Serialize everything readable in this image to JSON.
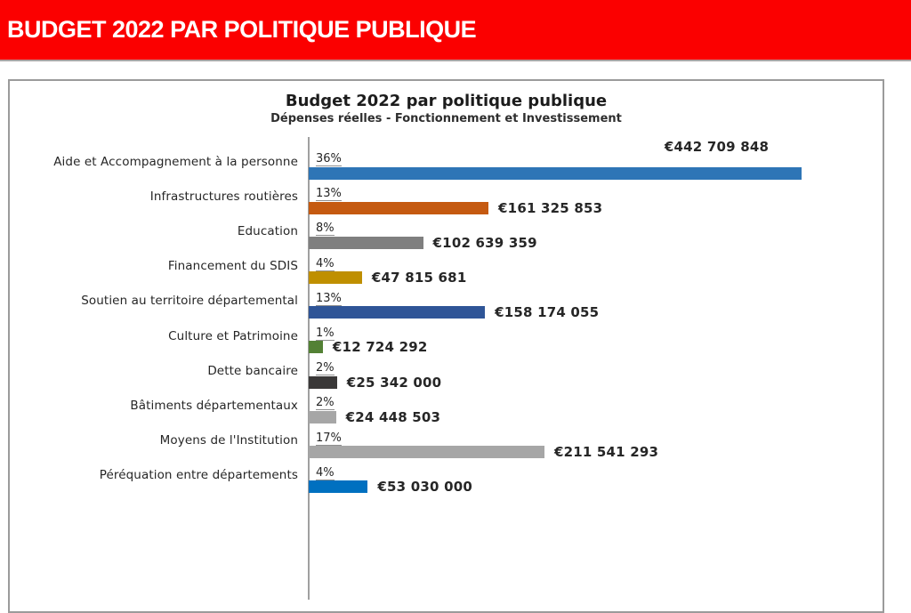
{
  "banner": {
    "title": "BUDGET 2022 PAR POLITIQUE PUBLIQUE",
    "background": "#FB0000",
    "text_color": "#FFFFFF"
  },
  "chart": {
    "title": "Budget 2022 par politique publique",
    "subtitle": "Dépenses réelles - Fonctionnement et Investissement"
  },
  "chart_data": {
    "type": "bar",
    "orientation": "horizontal",
    "title": "Budget 2022 par politique publique",
    "subtitle": "Dépenses réelles - Fonctionnement et Investissement",
    "unit": "EUR",
    "scale_max": 515000000,
    "grid": false,
    "legend": false,
    "categories": [
      "Aide et Accompagnement à la personne",
      "Infrastructures routières",
      "Education",
      "Financement du SDIS",
      "Soutien au territoire départemental",
      "Culture et Patrimoine",
      "Dette bancaire",
      "Bâtiments départementaux",
      "Moyens de l'Institution",
      "Péréquation entre départements"
    ],
    "rows": [
      {
        "label": "Aide et Accompagnement à la personne",
        "percent": "36%",
        "value": 442709848,
        "value_label": "€442 709 848",
        "color": "#2E75B6",
        "value_label_position": "above-end"
      },
      {
        "label": "Infrastructures routières",
        "percent": "13%",
        "value": 161325853,
        "value_label": "€161 325 853",
        "color": "#C55A11",
        "value_label_position": "right"
      },
      {
        "label": "Education",
        "percent": "8%",
        "value": 102639359,
        "value_label": "€102 639 359",
        "color": "#7F7F7F",
        "value_label_position": "right"
      },
      {
        "label": "Financement du SDIS",
        "percent": "4%",
        "value": 47815681,
        "value_label": "€47 815 681",
        "color": "#BF8F00",
        "value_label_position": "right"
      },
      {
        "label": "Soutien au territoire départemental",
        "percent": "13%",
        "value": 158174055,
        "value_label": "€158 174 055",
        "color": "#2F5597",
        "value_label_position": "right"
      },
      {
        "label": "Culture et Patrimoine",
        "percent": "1%",
        "value": 12724292,
        "value_label": "€12 724 292",
        "color": "#538135",
        "value_label_position": "right"
      },
      {
        "label": "Dette bancaire",
        "percent": "2%",
        "value": 25342000,
        "value_label": "€25 342 000",
        "color": "#3A3838",
        "value_label_position": "right"
      },
      {
        "label": "Bâtiments départementaux",
        "percent": "2%",
        "value": 24448503,
        "value_label": "€24 448 503",
        "color": "#A6A6A6",
        "value_label_position": "right"
      },
      {
        "label": "Moyens de l'Institution",
        "percent": "17%",
        "value": 211541293,
        "value_label": "€211 541 293",
        "color": "#A6A6A6",
        "value_label_position": "right"
      },
      {
        "label": "Péréquation entre départements",
        "percent": "4%",
        "value": 53030000,
        "value_label": "€53 030 000",
        "color": "#0070C0",
        "value_label_position": "right"
      }
    ]
  }
}
